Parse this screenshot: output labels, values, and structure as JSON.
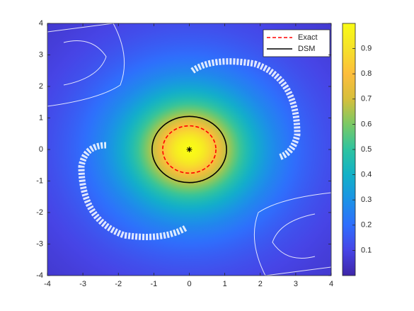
{
  "chart_data": {
    "type": "contour",
    "xlim": [
      -4,
      4
    ],
    "ylim": [
      -4,
      4
    ],
    "xticks": [
      -4,
      -3,
      -2,
      -1,
      0,
      1,
      2,
      3,
      4
    ],
    "yticks": [
      -4,
      -3,
      -2,
      -1,
      0,
      1,
      2,
      3,
      4
    ],
    "source": [
      0,
      0
    ],
    "series": [
      {
        "name": "Exact",
        "color": "#ff0000",
        "style": "dashed",
        "center": [
          0,
          0
        ],
        "radius": 0.75
      },
      {
        "name": "DSM",
        "color": "#000000",
        "style": "solid",
        "center": [
          0,
          0
        ],
        "radius": 1.05
      }
    ],
    "legend": "upper right",
    "colorbar": {
      "lim": [
        0,
        1
      ],
      "ticks": [
        0.1,
        0.2,
        0.3,
        0.4,
        0.5,
        0.6,
        0.7,
        0.8,
        0.9
      ],
      "colormap": [
        "#3e26a8",
        "#4744e6",
        "#2f6efd",
        "#1b92e6",
        "#12b1c7",
        "#2ec3a0",
        "#7ac965",
        "#d6bf3c",
        "#fdbd3d",
        "#f5e12a",
        "#f9fb15"
      ]
    }
  }
}
